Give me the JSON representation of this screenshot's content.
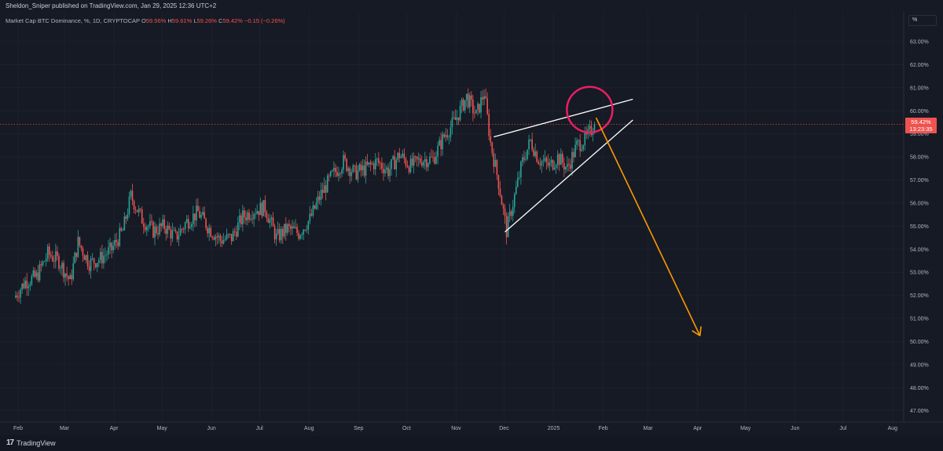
{
  "header": {
    "published": "Sheldon_Sniper published on TradingView.com, Jan 29, 2025 12:36 UTC+2"
  },
  "legend": {
    "title": "Market Cap BTC Dominance, %, 1D, CRYPTOCAP",
    "o_label": "O",
    "o_value": "59.56%",
    "h_label": "H",
    "h_value": "59.61%",
    "l_label": "L",
    "l_value": "59.26%",
    "c_label": "C",
    "c_value": "59.42% −0.15 (−0.26%)"
  },
  "scale": {
    "unit_button": "%"
  },
  "price_badge": {
    "price": "59.42%",
    "countdown": "13:23:35"
  },
  "footer": {
    "logo": "17",
    "brand": "TradingView"
  },
  "colors": {
    "background": "#161a25",
    "up": "#26a69a",
    "down": "#ef5350",
    "pattern_lines": "#ffffff",
    "circle": "#e91e63",
    "arrow": "#ff9800",
    "grid": "#232632"
  },
  "chart_data": {
    "type": "candlestick",
    "title": "Market Cap BTC Dominance, %, 1D, CRYPTOCAP",
    "x_axis": [
      "Feb",
      "Mar",
      "Apr",
      "May",
      "Jun",
      "Jul",
      "Aug",
      "Sep",
      "Oct",
      "Nov",
      "Dec",
      "2025",
      "Feb",
      "Mar",
      "Apr",
      "May",
      "Jun",
      "Jul",
      "Aug"
    ],
    "y_ticks": [
      "63.00%",
      "62.00%",
      "61.00%",
      "60.00%",
      "59.00%",
      "58.00%",
      "57.00%",
      "56.00%",
      "55.00%",
      "54.00%",
      "53.00%",
      "52.00%",
      "51.00%",
      "50.00%",
      "49.00%",
      "48.00%",
      "47.00%"
    ],
    "ylim": [
      46.6,
      63.6
    ],
    "last_price": 59.42,
    "close_series": [
      [
        "2024-02-01",
        51.9
      ],
      [
        "2024-02-08",
        52.6
      ],
      [
        "2024-02-15",
        52.8
      ],
      [
        "2024-02-22",
        53.8
      ],
      [
        "2024-02-29",
        53.5
      ],
      [
        "2024-03-07",
        52.6
      ],
      [
        "2024-03-12",
        54.3
      ],
      [
        "2024-03-19",
        53.4
      ],
      [
        "2024-03-26",
        53.6
      ],
      [
        "2024-04-02",
        54.0
      ],
      [
        "2024-04-09",
        54.8
      ],
      [
        "2024-04-14",
        56.3
      ],
      [
        "2024-04-21",
        55.3
      ],
      [
        "2024-04-28",
        54.8
      ],
      [
        "2024-05-05",
        55.0
      ],
      [
        "2024-05-12",
        54.5
      ],
      [
        "2024-05-19",
        55.2
      ],
      [
        "2024-05-26",
        55.6
      ],
      [
        "2024-06-02",
        54.9
      ],
      [
        "2024-06-09",
        54.4
      ],
      [
        "2024-06-16",
        54.5
      ],
      [
        "2024-06-23",
        55.4
      ],
      [
        "2024-06-30",
        55.7
      ],
      [
        "2024-07-07",
        55.8
      ],
      [
        "2024-07-14",
        54.5
      ],
      [
        "2024-07-21",
        54.9
      ],
      [
        "2024-07-28",
        54.7
      ],
      [
        "2024-08-04",
        55.3
      ],
      [
        "2024-08-11",
        56.4
      ],
      [
        "2024-08-18",
        57.2
      ],
      [
        "2024-08-25",
        57.8
      ],
      [
        "2024-09-01",
        57.3
      ],
      [
        "2024-09-08",
        57.5
      ],
      [
        "2024-09-15",
        57.8
      ],
      [
        "2024-09-22",
        57.4
      ],
      [
        "2024-09-29",
        58.1
      ],
      [
        "2024-10-06",
        57.6
      ],
      [
        "2024-10-13",
        57.9
      ],
      [
        "2024-10-20",
        57.9
      ],
      [
        "2024-10-27",
        58.9
      ],
      [
        "2024-11-03",
        59.6
      ],
      [
        "2024-11-10",
        60.6
      ],
      [
        "2024-11-16",
        59.8
      ],
      [
        "2024-11-21",
        60.8
      ],
      [
        "2024-11-25",
        58.6
      ],
      [
        "2024-11-30",
        56.9
      ],
      [
        "2024-12-05",
        54.8
      ],
      [
        "2024-12-10",
        56.3
      ],
      [
        "2024-12-15",
        57.8
      ],
      [
        "2024-12-20",
        58.7
      ],
      [
        "2024-12-25",
        57.9
      ],
      [
        "2025-01-01",
        57.6
      ],
      [
        "2025-01-06",
        58.0
      ],
      [
        "2025-01-12",
        57.5
      ],
      [
        "2025-01-18",
        58.5
      ],
      [
        "2025-01-24",
        58.8
      ],
      [
        "2025-01-29",
        59.42
      ]
    ],
    "annotations": [
      {
        "type": "trendline",
        "from": [
          "2024-11-26",
          58.87
        ],
        "to": [
          "2025-02-21",
          60.5
        ]
      },
      {
        "type": "trendline",
        "from": [
          "2024-12-03",
          54.75
        ],
        "to": [
          "2025-02-21",
          59.6
        ]
      },
      {
        "type": "circle",
        "center": [
          "2025-01-25",
          60.05
        ]
      },
      {
        "type": "arrow",
        "from": [
          "2025-01-29",
          59.7
        ],
        "to": [
          "2025-04-04",
          50.25
        ]
      }
    ]
  }
}
